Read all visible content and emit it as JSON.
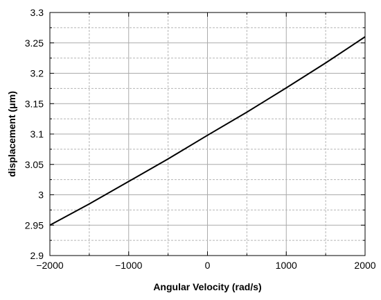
{
  "chart_data": {
    "type": "line",
    "xlabel": "Angular Velocity (rad/s)",
    "ylabel": "displacement (μm)",
    "xlim": [
      -2000,
      2000
    ],
    "ylim": [
      2.9,
      3.3
    ],
    "x_ticks": [
      -2000,
      -1000,
      0,
      1000,
      2000
    ],
    "x_tick_labels": [
      "−2000",
      "−1000",
      "0",
      "1000",
      "2000"
    ],
    "y_ticks": [
      2.9,
      2.95,
      3.0,
      3.05,
      3.1,
      3.15,
      3.2,
      3.25,
      3.3
    ],
    "y_tick_labels": [
      "2.9",
      "2.95",
      "3",
      "3.05",
      "3.1",
      "3.15",
      "3.2",
      "3.25",
      "3.3"
    ],
    "grid": true,
    "series": [
      {
        "x": [
          -2000,
          -1500,
          -1000,
          -500,
          0,
          500,
          1000,
          1500,
          2000
        ],
        "y": [
          2.95,
          2.985,
          3.022,
          3.059,
          3.098,
          3.136,
          3.176,
          3.217,
          3.26
        ]
      }
    ],
    "colors": {
      "line": "#000000",
      "grid_major": "#aaaaaa",
      "grid_minor": "#b5b5b5",
      "axis": "#000000"
    }
  }
}
